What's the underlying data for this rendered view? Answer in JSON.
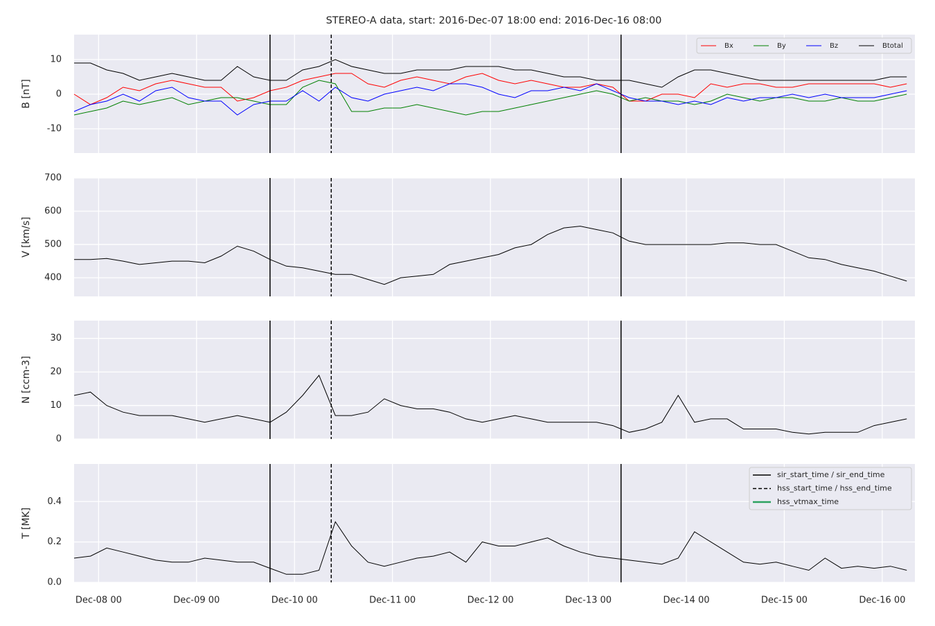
{
  "chart_data": [
    {
      "type": "line",
      "title": "STEREO-A data, start: 2016-Dec-07 18:00  end: 2016-Dec-16 08:00",
      "ylabel": "B [nT]",
      "x": [
        "Dec-07 18",
        "Dec-07 22",
        "Dec-08 02",
        "Dec-08 06",
        "Dec-08 10",
        "Dec-08 14",
        "Dec-08 18",
        "Dec-08 22",
        "Dec-09 02",
        "Dec-09 06",
        "Dec-09 10",
        "Dec-09 14",
        "Dec-09 18",
        "Dec-09 22",
        "Dec-10 02",
        "Dec-10 06",
        "Dec-10 10",
        "Dec-10 14",
        "Dec-10 18",
        "Dec-10 22",
        "Dec-11 02",
        "Dec-11 06",
        "Dec-11 10",
        "Dec-11 14",
        "Dec-11 18",
        "Dec-11 22",
        "Dec-12 02",
        "Dec-12 06",
        "Dec-12 10",
        "Dec-12 14",
        "Dec-12 18",
        "Dec-12 22",
        "Dec-13 02",
        "Dec-13 06",
        "Dec-13 10",
        "Dec-13 14",
        "Dec-13 18",
        "Dec-13 22",
        "Dec-14 02",
        "Dec-14 06",
        "Dec-14 10",
        "Dec-14 14",
        "Dec-14 18",
        "Dec-14 22",
        "Dec-15 02",
        "Dec-15 06",
        "Dec-15 10",
        "Dec-15 14",
        "Dec-15 18",
        "Dec-15 22",
        "Dec-16 02",
        "Dec-16 06"
      ],
      "xlim": [
        "Dec-07 18",
        "Dec-16 08"
      ],
      "xticks": [
        "Dec-08 00",
        "Dec-09 00",
        "Dec-10 00",
        "Dec-11 00",
        "Dec-12 00",
        "Dec-13 00",
        "Dec-14 00",
        "Dec-15 00",
        "Dec-16 00"
      ],
      "ylim": [
        -17,
        17.2
      ],
      "yticks": [
        -10,
        0,
        10
      ],
      "grid": true,
      "legend": "upper right",
      "series": [
        {
          "name": "Bx",
          "color": "#ff0000",
          "values": [
            0,
            -3,
            -1,
            2,
            1,
            3,
            4,
            3,
            2,
            2,
            -2,
            -1,
            1,
            2,
            4,
            5,
            6,
            6,
            3,
            2,
            4,
            5,
            4,
            3,
            5,
            6,
            4,
            3,
            4,
            3,
            2,
            2,
            3,
            2,
            -2,
            -2,
            0,
            0,
            -1,
            3,
            2,
            3,
            3,
            2,
            2,
            3,
            3,
            3,
            3,
            3,
            2,
            3
          ]
        },
        {
          "name": "By",
          "color": "#008000",
          "values": [
            -6,
            -5,
            -4,
            -2,
            -3,
            -2,
            -1,
            -3,
            -2,
            -1,
            -1,
            -2,
            -3,
            -3,
            2,
            4,
            3,
            -5,
            -5,
            -4,
            -4,
            -3,
            -4,
            -5,
            -6,
            -5,
            -5,
            -4,
            -3,
            -2,
            -1,
            0,
            1,
            0,
            -2,
            -1,
            -2,
            -2,
            -3,
            -2,
            0,
            -1,
            -2,
            -1,
            -1,
            -2,
            -2,
            -1,
            -2,
            -2,
            -1,
            0
          ]
        },
        {
          "name": "Bz",
          "color": "#0000ff",
          "values": [
            -5,
            -3,
            -2,
            0,
            -2,
            1,
            2,
            -1,
            -2,
            -2,
            -6,
            -3,
            -2,
            -2,
            1,
            -2,
            2,
            -1,
            -2,
            0,
            1,
            2,
            1,
            3,
            3,
            2,
            0,
            -1,
            1,
            1,
            2,
            1,
            3,
            1,
            -1,
            -2,
            -2,
            -3,
            -2,
            -3,
            -1,
            -2,
            -1,
            -1,
            0,
            -1,
            0,
            -1,
            -1,
            -1,
            0,
            1
          ]
        },
        {
          "name": "Btotal",
          "color": "#000000",
          "values": [
            9,
            9,
            7,
            6,
            4,
            5,
            6,
            5,
            4,
            4,
            8,
            5,
            4,
            4,
            7,
            8,
            10,
            8,
            7,
            6,
            6,
            7,
            7,
            7,
            8,
            8,
            8,
            7,
            7,
            6,
            5,
            5,
            4,
            4,
            4,
            3,
            2,
            5,
            7,
            7,
            6,
            5,
            4,
            4,
            4,
            4,
            4,
            4,
            4,
            4,
            5,
            5
          ]
        }
      ]
    },
    {
      "type": "line",
      "ylabel": "V [km/s]",
      "x": [
        "Dec-07 18",
        "Dec-07 22",
        "Dec-08 02",
        "Dec-08 06",
        "Dec-08 10",
        "Dec-08 14",
        "Dec-08 18",
        "Dec-08 22",
        "Dec-09 02",
        "Dec-09 06",
        "Dec-09 10",
        "Dec-09 14",
        "Dec-09 18",
        "Dec-09 22",
        "Dec-10 02",
        "Dec-10 06",
        "Dec-10 10",
        "Dec-10 14",
        "Dec-10 18",
        "Dec-10 22",
        "Dec-11 02",
        "Dec-11 06",
        "Dec-11 10",
        "Dec-11 14",
        "Dec-11 18",
        "Dec-11 22",
        "Dec-12 02",
        "Dec-12 06",
        "Dec-12 10",
        "Dec-12 14",
        "Dec-12 18",
        "Dec-12 22",
        "Dec-13 02",
        "Dec-13 06",
        "Dec-13 10",
        "Dec-13 14",
        "Dec-13 18",
        "Dec-13 22",
        "Dec-14 02",
        "Dec-14 06",
        "Dec-14 10",
        "Dec-14 14",
        "Dec-14 18",
        "Dec-14 22",
        "Dec-15 02",
        "Dec-15 06",
        "Dec-15 10",
        "Dec-15 14",
        "Dec-15 18",
        "Dec-15 22",
        "Dec-16 02",
        "Dec-16 06"
      ],
      "xlim": [
        "Dec-07 18",
        "Dec-16 08"
      ],
      "xticks": [
        "Dec-08 00",
        "Dec-09 00",
        "Dec-10 00",
        "Dec-11 00",
        "Dec-12 00",
        "Dec-13 00",
        "Dec-14 00",
        "Dec-15 00",
        "Dec-16 00"
      ],
      "ylim": [
        344,
        700
      ],
      "yticks": [
        400,
        500,
        600,
        700
      ],
      "grid": true,
      "series": [
        {
          "color": "#000000",
          "values": [
            455,
            455,
            458,
            450,
            440,
            445,
            450,
            450,
            445,
            465,
            495,
            480,
            455,
            435,
            430,
            420,
            410,
            410,
            395,
            380,
            400,
            405,
            410,
            440,
            450,
            460,
            470,
            490,
            500,
            530,
            550,
            555,
            545,
            535,
            510,
            500,
            500,
            500,
            500,
            500,
            505,
            505,
            500,
            500,
            480,
            460,
            455,
            440,
            430,
            420,
            405,
            390
          ]
        }
      ]
    },
    {
      "type": "line",
      "ylabel": "N [ccm-3]",
      "x": [
        "Dec-07 18",
        "Dec-07 22",
        "Dec-08 02",
        "Dec-08 06",
        "Dec-08 10",
        "Dec-08 14",
        "Dec-08 18",
        "Dec-08 22",
        "Dec-09 02",
        "Dec-09 06",
        "Dec-09 10",
        "Dec-09 14",
        "Dec-09 18",
        "Dec-09 22",
        "Dec-10 02",
        "Dec-10 06",
        "Dec-10 10",
        "Dec-10 14",
        "Dec-10 18",
        "Dec-10 22",
        "Dec-11 02",
        "Dec-11 06",
        "Dec-11 10",
        "Dec-11 14",
        "Dec-11 18",
        "Dec-11 22",
        "Dec-12 02",
        "Dec-12 06",
        "Dec-12 10",
        "Dec-12 14",
        "Dec-12 18",
        "Dec-12 22",
        "Dec-13 02",
        "Dec-13 06",
        "Dec-13 10",
        "Dec-13 14",
        "Dec-13 18",
        "Dec-13 22",
        "Dec-14 02",
        "Dec-14 06",
        "Dec-14 10",
        "Dec-14 14",
        "Dec-14 18",
        "Dec-14 22",
        "Dec-15 02",
        "Dec-15 06",
        "Dec-15 10",
        "Dec-15 14",
        "Dec-15 18",
        "Dec-15 22",
        "Dec-16 02",
        "Dec-16 06"
      ],
      "xlim": [
        "Dec-07 18",
        "Dec-16 08"
      ],
      "xticks": [
        "Dec-08 00",
        "Dec-09 00",
        "Dec-10 00",
        "Dec-11 00",
        "Dec-12 00",
        "Dec-13 00",
        "Dec-14 00",
        "Dec-15 00",
        "Dec-16 00"
      ],
      "ylim": [
        0,
        35.3
      ],
      "yticks": [
        0,
        10,
        20,
        30
      ],
      "grid": true,
      "series": [
        {
          "color": "#000000",
          "values": [
            13,
            14,
            10,
            8,
            7,
            7,
            7,
            6,
            5,
            6,
            7,
            6,
            5,
            8,
            13,
            19,
            7,
            7,
            8,
            12,
            10,
            9,
            9,
            8,
            6,
            5,
            6,
            7,
            6,
            5,
            5,
            5,
            5,
            4,
            2,
            3,
            5,
            13,
            5,
            6,
            6,
            3,
            3,
            3,
            2,
            1.5,
            2,
            2,
            2,
            4,
            5,
            6
          ]
        }
      ]
    },
    {
      "type": "line",
      "ylabel": "T [MK]",
      "x": [
        "Dec-07 18",
        "Dec-07 22",
        "Dec-08 02",
        "Dec-08 06",
        "Dec-08 10",
        "Dec-08 14",
        "Dec-08 18",
        "Dec-08 22",
        "Dec-09 02",
        "Dec-09 06",
        "Dec-09 10",
        "Dec-09 14",
        "Dec-09 18",
        "Dec-09 22",
        "Dec-10 02",
        "Dec-10 06",
        "Dec-10 10",
        "Dec-10 14",
        "Dec-10 18",
        "Dec-10 22",
        "Dec-11 02",
        "Dec-11 06",
        "Dec-11 10",
        "Dec-11 14",
        "Dec-11 18",
        "Dec-11 22",
        "Dec-12 02",
        "Dec-12 06",
        "Dec-12 10",
        "Dec-12 14",
        "Dec-12 18",
        "Dec-12 22",
        "Dec-13 02",
        "Dec-13 06",
        "Dec-13 10",
        "Dec-13 14",
        "Dec-13 18",
        "Dec-13 22",
        "Dec-14 02",
        "Dec-14 06",
        "Dec-14 10",
        "Dec-14 14",
        "Dec-14 18",
        "Dec-14 22",
        "Dec-15 02",
        "Dec-15 06",
        "Dec-15 10",
        "Dec-15 14",
        "Dec-15 18",
        "Dec-15 22",
        "Dec-16 02",
        "Dec-16 06"
      ],
      "xlim": [
        "Dec-07 18",
        "Dec-16 08"
      ],
      "xticks": [
        "Dec-08 00",
        "Dec-09 00",
        "Dec-10 00",
        "Dec-11 00",
        "Dec-12 00",
        "Dec-13 00",
        "Dec-14 00",
        "Dec-15 00",
        "Dec-16 00"
      ],
      "ylim": [
        0,
        0.586
      ],
      "yticks": [
        {
          "value": 0,
          "label": "0.0"
        },
        0.2,
        0.4
      ],
      "grid": true,
      "legend": "upper right",
      "series": [
        {
          "color": "#000000",
          "values": [
            0.12,
            0.13,
            0.17,
            0.15,
            0.13,
            0.11,
            0.1,
            0.1,
            0.12,
            0.11,
            0.1,
            0.1,
            0.07,
            0.04,
            0.04,
            0.06,
            0.3,
            0.18,
            0.1,
            0.08,
            0.1,
            0.12,
            0.13,
            0.15,
            0.1,
            0.2,
            0.18,
            0.18,
            0.2,
            0.22,
            0.18,
            0.15,
            0.13,
            0.12,
            0.11,
            0.1,
            0.09,
            0.12,
            0.25,
            0.2,
            0.15,
            0.1,
            0.09,
            0.1,
            0.08,
            0.06,
            0.12,
            0.07,
            0.08,
            0.07,
            0.08,
            0.06
          ]
        }
      ]
    }
  ],
  "events": [
    {
      "name": "sir_start_time / sir_end_time",
      "color": "#000000",
      "dashed": false,
      "x": [
        "Dec-09 18",
        "Dec-13 08"
      ]
    },
    {
      "name": "hss_start_time / hss_end_time",
      "color": "#000000",
      "dashed": true,
      "x": [
        "Dec-10 09"
      ]
    },
    {
      "name": "hss_vtmax_time",
      "color": "#2ca25f",
      "dashed": false,
      "x": []
    }
  ]
}
